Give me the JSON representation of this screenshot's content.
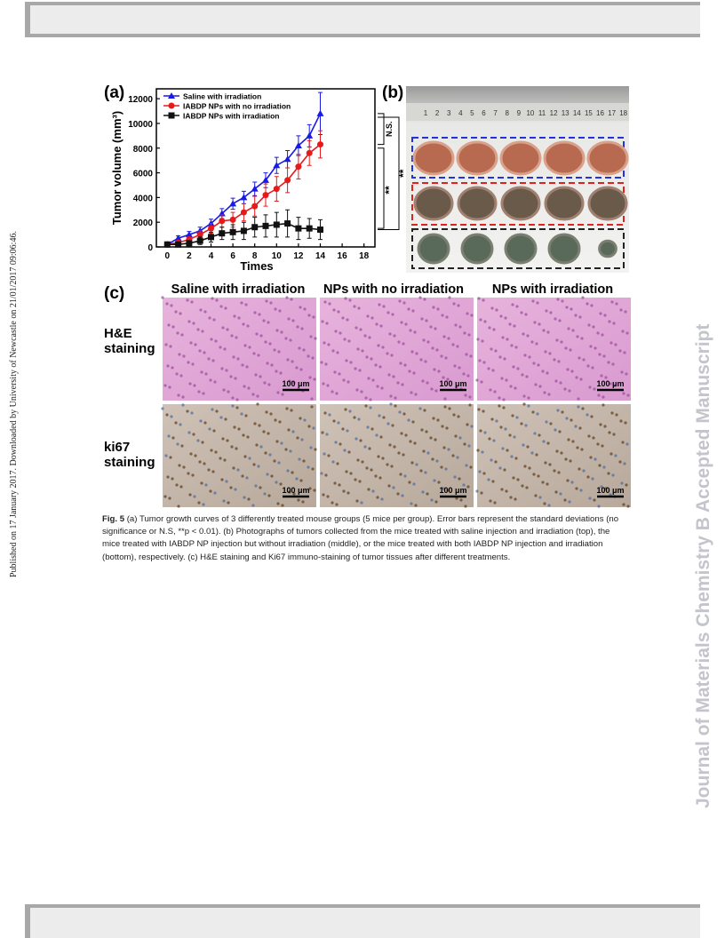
{
  "side_note": "Published on 17 January 2017. Downloaded by University of Newcastle on 21/01/2017 09:06:46.",
  "watermark": "Journal of Materials Chemistry B Accepted Manuscript",
  "figure": {
    "panel_labels": [
      "(a)",
      "(b)",
      "(c)"
    ],
    "ruler_labels": [
      "1",
      "2",
      "3",
      "4",
      "5",
      "6",
      "7",
      "8",
      "9",
      "10",
      "11",
      "12",
      "13",
      "14",
      "15",
      "16",
      "17",
      "18"
    ],
    "column_titles": [
      "Saline with irradiation",
      "NPs with no irradiation",
      "NPs with  irradiation"
    ],
    "row_labels": [
      [
        "H&E",
        "staining"
      ],
      [
        "ki67",
        "staining"
      ]
    ],
    "scale_bars": [
      "100 μm",
      "100 μm",
      "100 μm",
      "100 μm",
      "100 μm",
      "100 μm"
    ]
  },
  "chart_data": {
    "type": "line",
    "x_label": "Times",
    "y_label": "Tumor volume (mm³)",
    "x": [
      0,
      1,
      2,
      3,
      4,
      5,
      6,
      7,
      8,
      9,
      10,
      11,
      12,
      13,
      14
    ],
    "series": [
      {
        "name": "Saline with irradiation",
        "color": "#1a1ae6",
        "marker": "triangle",
        "values": [
          200,
          700,
          1000,
          1300,
          1900,
          2700,
          3500,
          4000,
          4700,
          5400,
          6600,
          7100,
          8200,
          9000,
          10800
        ],
        "errors": [
          150,
          200,
          250,
          300,
          350,
          400,
          450,
          500,
          550,
          600,
          650,
          700,
          800,
          900,
          1700
        ]
      },
      {
        "name": "IABDP NPs with no irradiation",
        "color": "#e61a1a",
        "marker": "circle",
        "values": [
          200,
          350,
          600,
          1000,
          1500,
          2100,
          2200,
          2800,
          3300,
          4200,
          4700,
          5400,
          6500,
          7600,
          8300
        ],
        "errors": [
          100,
          150,
          200,
          300,
          400,
          500,
          600,
          700,
          800,
          900,
          1000,
          1000,
          1000,
          1000,
          1100
        ]
      },
      {
        "name": "IABDP NPs with irradiation",
        "color": "#111111",
        "marker": "square",
        "values": [
          200,
          200,
          300,
          500,
          800,
          1100,
          1200,
          1300,
          1600,
          1700,
          1800,
          1900,
          1500,
          1500,
          1400
        ],
        "errors": [
          100,
          150,
          200,
          300,
          400,
          500,
          600,
          700,
          800,
          900,
          1000,
          1100,
          900,
          800,
          800
        ]
      }
    ],
    "xlim": [
      -1,
      19
    ],
    "xticks": [
      0,
      2,
      4,
      6,
      8,
      10,
      12,
      14,
      16,
      18
    ],
    "ylim": [
      0,
      12800
    ],
    "yticks": [
      0,
      2000,
      4000,
      6000,
      8000,
      10000,
      12000
    ],
    "annotations": [
      "N.S.",
      "**",
      "**"
    ]
  },
  "caption": {
    "label": "Fig. 5",
    "text": " (a) Tumor growth curves of 3 differently treated mouse groups (5 mice per group). Error bars represent the standard deviations (no significance or N.S, **p < 0.01). (b) Photographs of tumors collected from the mice treated with saline injection and irradiation (top), the mice treated with IABDP NP injection but without irradiation (middle), or the mice treated with both IABDP NP injection and irradiation (bottom), respectively. (c) H&E staining and Ki67 immuno-staining of tumor tissues after different treatments."
  }
}
